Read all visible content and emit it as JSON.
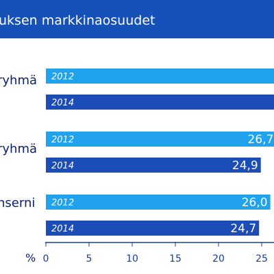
{
  "chart_data": {
    "type": "bar",
    "orientation": "horizontal",
    "title": "uksen markkinaosuudet",
    "categories": [
      "ryhmä",
      "ryhmä",
      "nserni"
    ],
    "series": [
      {
        "name": "2012",
        "values": [
          null,
          26.7,
          26.0
        ]
      },
      {
        "name": "2014",
        "values": [
          null,
          24.9,
          24.7
        ]
      }
    ],
    "value_labels": [
      [
        "",
        ""
      ],
      [
        "26,7",
        "24,9"
      ],
      [
        "26,0",
        "24,7"
      ]
    ],
    "xlabel": "%",
    "xlim": [
      0,
      27
    ],
    "xticks": [
      "0",
      "5",
      "10",
      "15",
      "20",
      "25"
    ],
    "grid": false,
    "legend": "none"
  },
  "colors": {
    "header_bg": "#1551b6",
    "header_text": "#ffffff",
    "bar_2012": "#20a2ec",
    "bar_2014": "#1c4db7",
    "text_dark": "#0a1f6b",
    "axis_text": "#1a3c9c",
    "axis_line": "#1a3c9c",
    "bar_text": "#ffffff"
  }
}
